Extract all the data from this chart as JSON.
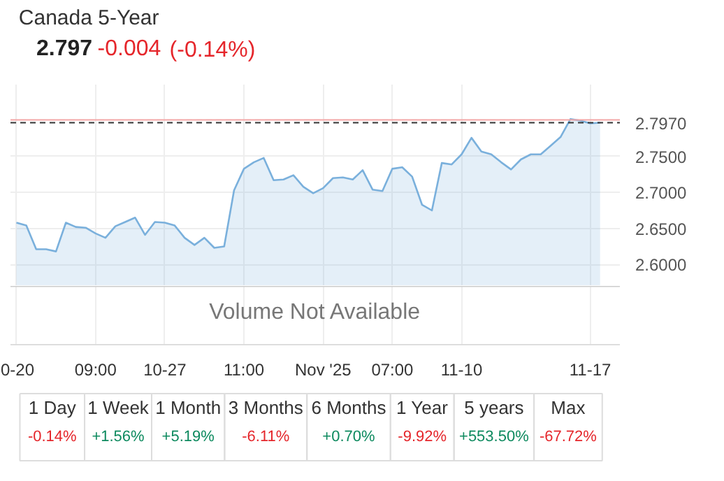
{
  "chart_data": [
    {
      "type": "area",
      "title": "Canada 5-Year",
      "subtitle": "2.797 -0.004 (-0.14%)",
      "categories": [
        "0-20",
        null,
        null,
        null,
        null,
        null,
        null,
        null,
        "09:00",
        null,
        null,
        null,
        null,
        null,
        null,
        "10-27",
        null,
        null,
        null,
        null,
        null,
        null,
        null,
        "11:00",
        null,
        null,
        null,
        null,
        null,
        null,
        null,
        "Nov '25",
        null,
        null,
        null,
        null,
        null,
        null,
        "07:00",
        null,
        null,
        null,
        null,
        null,
        null,
        "11-10",
        null,
        null,
        null,
        null,
        null,
        null,
        null,
        null,
        null,
        null,
        null,
        null,
        "11-17",
        null
      ],
      "series": [
        {
          "color": "#7ab0dc",
          "values": [
            2.658,
            2.654,
            2.621,
            2.621,
            2.618,
            2.658,
            2.652,
            2.651,
            2.643,
            2.637,
            2.653,
            2.659,
            2.665,
            2.641,
            2.659,
            2.658,
            2.654,
            2.637,
            2.627,
            2.637,
            2.623,
            2.625,
            2.703,
            2.733,
            2.742,
            2.748,
            2.717,
            2.718,
            2.724,
            2.708,
            2.699,
            2.706,
            2.72,
            2.721,
            2.718,
            2.731,
            2.704,
            2.702,
            2.733,
            2.735,
            2.722,
            2.683,
            2.675,
            2.741,
            2.739,
            2.753,
            2.776,
            2.757,
            2.753,
            2.742,
            2.732,
            2.746,
            2.753,
            2.753,
            2.765,
            2.777,
            2.802,
            2.8,
            2.796,
            2.797
          ]
        }
      ],
      "ylim": [
        2.57,
        2.85
      ],
      "yticks": [
        {
          "value": 2.6,
          "label": "2.6000"
        },
        {
          "value": 2.65,
          "label": "2.6500"
        },
        {
          "value": 2.7,
          "label": "2.7000"
        },
        {
          "value": 2.75,
          "label": "2.7500"
        }
      ],
      "ref_lines": [
        {
          "axis": "y",
          "value": 2.801,
          "color": "#f4a6a6",
          "line_style": "solid"
        },
        {
          "axis": "y",
          "value": 2.797,
          "label": "2.7970",
          "color": "#333333",
          "line_style": "dashed"
        }
      ],
      "annotations": [
        "Volume Not Available"
      ],
      "grid": true
    },
    {
      "type": "other",
      "categories": [
        "1 Day",
        "1 Week",
        "1 Month",
        "3 Months",
        "6 Months",
        "1 Year",
        "5 years",
        "Max"
      ],
      "value_labels": [
        "-0.14%",
        "+1.56%",
        "+5.19%",
        "-6.11%",
        "+0.70%",
        "-9.92%",
        "+553.50%",
        "-67.72%"
      ],
      "colors": [
        "#e5262b",
        "#0e8a5f",
        "#0e8a5f",
        "#e5262b",
        "#0e8a5f",
        "#e5262b",
        "#0e8a5f",
        "#e5262b"
      ]
    }
  ]
}
